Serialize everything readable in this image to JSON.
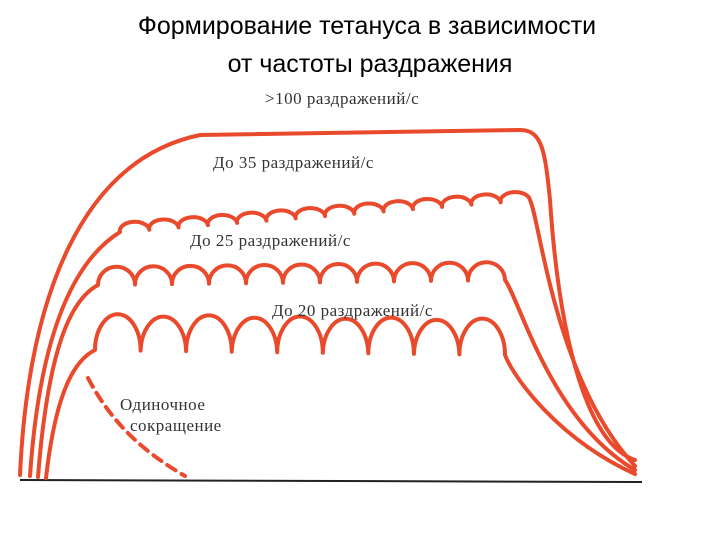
{
  "title": [
    "Формирование тетануса в зависимости",
    "от частоты раздражения"
  ],
  "curves": [
    {
      "label": ">100 раздражений/с"
    },
    {
      "label": "До 35 раздражений/с"
    },
    {
      "label": "До 25 раздражений/с"
    },
    {
      "label": "До 20 раздражений/с"
    },
    {
      "label": [
        "Одиночное",
        "сокращение"
      ]
    }
  ]
}
